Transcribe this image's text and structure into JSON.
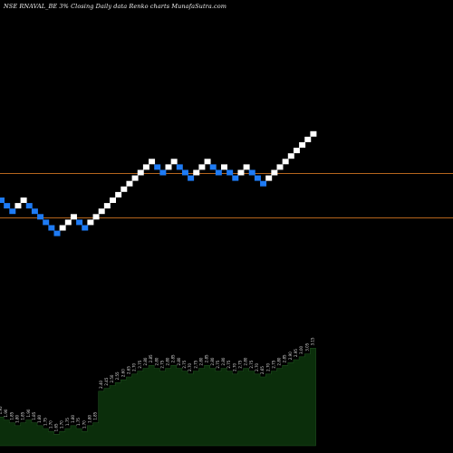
{
  "chart_data": {
    "type": "renko",
    "title": "NSE RNAVAL_BE 3% Closing Daily data Renko charts MunafaSutra.com",
    "colors": {
      "background": "#000000",
      "up_brick": "#ffffff",
      "down_brick": "#1e7bf5",
      "reference_line": "#b5651d",
      "volume_area": "#0b2e0b",
      "volume_label": "#dddddd"
    },
    "reference_lines": [
      "upper",
      "lower"
    ],
    "bricks": [
      {
        "dir": "down",
        "level": 0
      },
      {
        "dir": "down",
        "level": -1
      },
      {
        "dir": "down",
        "level": -2
      },
      {
        "dir": "up",
        "level": -1
      },
      {
        "dir": "up",
        "level": 0
      },
      {
        "dir": "down",
        "level": -1
      },
      {
        "dir": "down",
        "level": -2
      },
      {
        "dir": "down",
        "level": -3
      },
      {
        "dir": "down",
        "level": -4
      },
      {
        "dir": "down",
        "level": -5
      },
      {
        "dir": "down",
        "level": -6
      },
      {
        "dir": "up",
        "level": -5
      },
      {
        "dir": "up",
        "level": -4
      },
      {
        "dir": "up",
        "level": -3
      },
      {
        "dir": "down",
        "level": -4
      },
      {
        "dir": "down",
        "level": -5
      },
      {
        "dir": "up",
        "level": -4
      },
      {
        "dir": "up",
        "level": -3
      },
      {
        "dir": "up",
        "level": -2
      },
      {
        "dir": "up",
        "level": -1
      },
      {
        "dir": "up",
        "level": 0
      },
      {
        "dir": "up",
        "level": 1
      },
      {
        "dir": "up",
        "level": 2
      },
      {
        "dir": "up",
        "level": 3
      },
      {
        "dir": "up",
        "level": 4
      },
      {
        "dir": "up",
        "level": 5
      },
      {
        "dir": "up",
        "level": 6
      },
      {
        "dir": "up",
        "level": 7
      },
      {
        "dir": "down",
        "level": 6
      },
      {
        "dir": "down",
        "level": 5
      },
      {
        "dir": "up",
        "level": 6
      },
      {
        "dir": "up",
        "level": 7
      },
      {
        "dir": "down",
        "level": 6
      },
      {
        "dir": "down",
        "level": 5
      },
      {
        "dir": "down",
        "level": 4
      },
      {
        "dir": "up",
        "level": 5
      },
      {
        "dir": "up",
        "level": 6
      },
      {
        "dir": "up",
        "level": 7
      },
      {
        "dir": "down",
        "level": 6
      },
      {
        "dir": "down",
        "level": 5
      },
      {
        "dir": "up",
        "level": 6
      },
      {
        "dir": "down",
        "level": 5
      },
      {
        "dir": "down",
        "level": 4
      },
      {
        "dir": "up",
        "level": 5
      },
      {
        "dir": "up",
        "level": 6
      },
      {
        "dir": "down",
        "level": 5
      },
      {
        "dir": "down",
        "level": 4
      },
      {
        "dir": "down",
        "level": 3
      },
      {
        "dir": "up",
        "level": 4
      },
      {
        "dir": "up",
        "level": 5
      },
      {
        "dir": "up",
        "level": 6
      },
      {
        "dir": "up",
        "level": 7
      },
      {
        "dir": "up",
        "level": 8
      },
      {
        "dir": "up",
        "level": 9
      },
      {
        "dir": "up",
        "level": 10
      },
      {
        "dir": "up",
        "level": 11
      },
      {
        "dir": "up",
        "level": 12
      }
    ],
    "volume_labels": [
      "1.95",
      "1.90",
      "1.85",
      "1.80",
      "1.85",
      "1.90",
      "1.85",
      "1.80",
      "1.75",
      "1.70",
      "1.65",
      "1.70",
      "1.75",
      "1.80",
      "1.75",
      "1.70",
      "1.80",
      "1.85",
      "2.40",
      "2.45",
      "2.50",
      "2.55",
      "2.60",
      "2.65",
      "2.70",
      "2.75",
      "2.80",
      "2.85",
      "2.80",
      "2.75",
      "2.80",
      "2.85",
      "2.80",
      "2.75",
      "2.70",
      "2.75",
      "2.80",
      "2.85",
      "2.80",
      "2.75",
      "2.80",
      "2.75",
      "2.70",
      "2.75",
      "2.80",
      "2.75",
      "2.70",
      "2.65",
      "2.70",
      "2.75",
      "2.80",
      "2.85",
      "2.90",
      "2.95",
      "3.00",
      "3.05",
      "3.15"
    ]
  }
}
